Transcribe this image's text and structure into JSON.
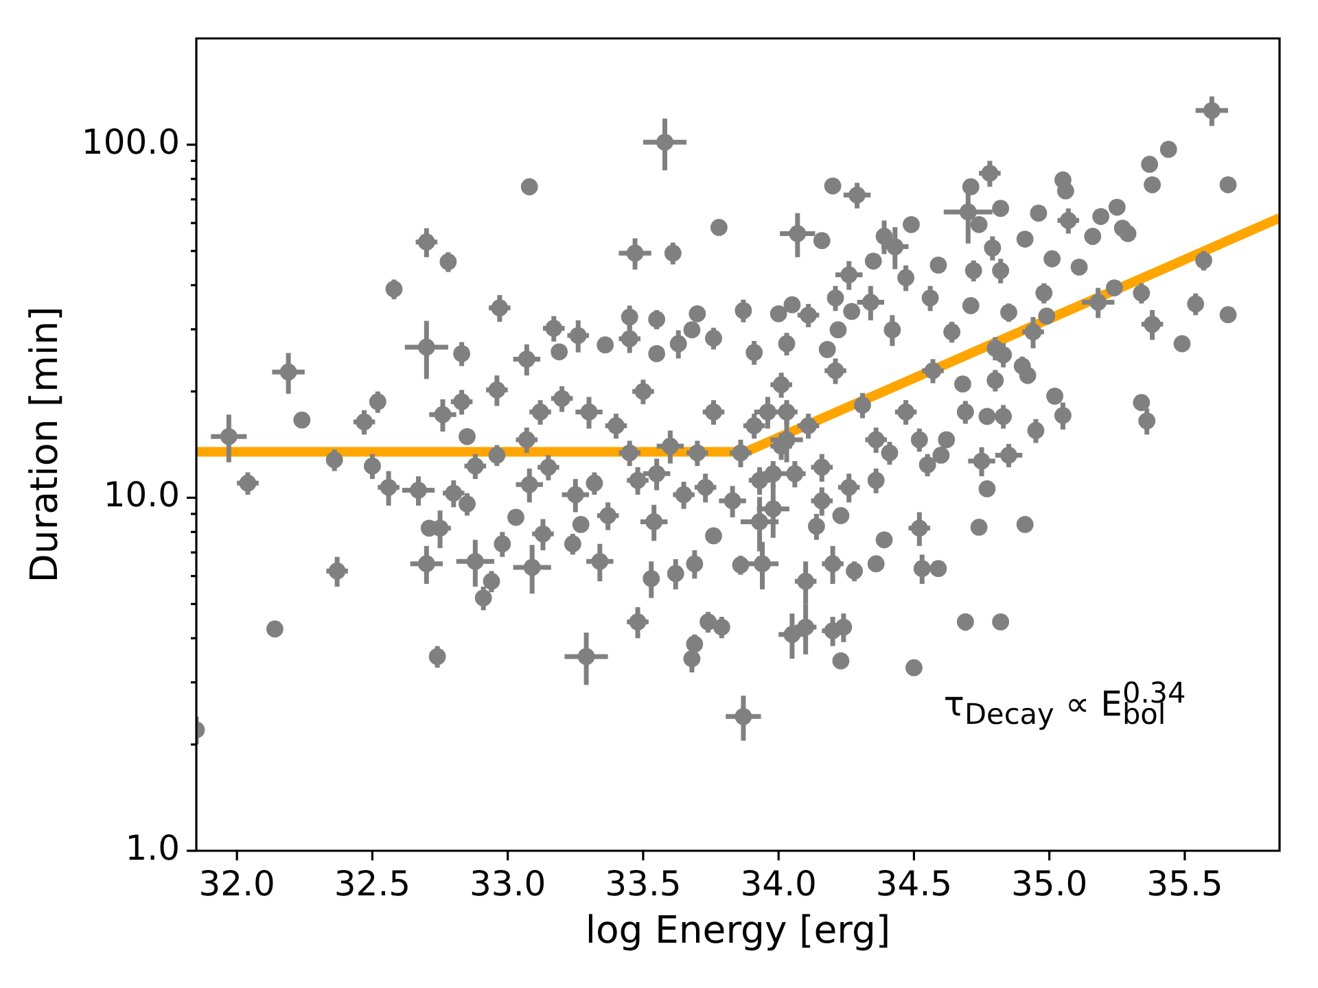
{
  "chart_data": {
    "type": "scatter",
    "xlabel": "log Energy [erg]",
    "ylabel": "Duration [min]",
    "xlim": [
      31.85,
      35.85
    ],
    "ylim": [
      1,
      200
    ],
    "log": true,
    "marker": "circle",
    "xticks": [
      {
        "value": 32,
        "label": "32.0"
      },
      32.5,
      {
        "value": 33,
        "label": "33.0"
      },
      33.5,
      {
        "value": 34,
        "label": "34.0"
      },
      34.5,
      {
        "value": 35,
        "label": "35.0"
      },
      35.5
    ],
    "yticks": [
      {
        "value": 1,
        "label": "1.0"
      },
      {
        "value": 2,
        "label": null
      },
      {
        "value": 3,
        "label": null
      },
      {
        "value": 4,
        "label": null
      },
      {
        "value": 5,
        "label": null
      },
      {
        "value": 6,
        "label": null
      },
      {
        "value": 7,
        "label": null
      },
      {
        "value": 8,
        "label": null
      },
      {
        "value": 9,
        "label": null
      },
      {
        "value": 10,
        "label": "10.0"
      },
      {
        "value": 20,
        "label": null
      },
      {
        "value": 30,
        "label": null
      },
      {
        "value": 40,
        "label": null
      },
      {
        "value": 50,
        "label": null
      },
      {
        "value": 60,
        "label": null
      },
      {
        "value": 70,
        "label": null
      },
      {
        "value": 80,
        "label": null
      },
      {
        "value": 90,
        "label": null
      },
      {
        "value": 100,
        "label": "100.0"
      }
    ],
    "annotations": [
      "τ$_{Decay}$ ∝ E$_{bol}$$^{0.34}$"
    ],
    "series": [
      {
        "type": "scatter",
        "color": "#808080",
        "x": [
          31.85,
          31.97,
          32.04,
          32.14,
          32.19,
          32.24,
          32.36,
          32.37,
          32.47,
          32.52,
          32.58,
          32.7,
          32.78,
          32.7,
          32.83,
          32.76,
          32.83,
          32.85,
          32.97,
          32.96,
          33.08,
          33.07,
          33.17,
          32.5,
          32.56,
          32.67,
          32.71,
          32.75,
          32.7,
          32.74,
          32.8,
          32.85,
          32.88,
          32.91,
          32.94,
          32.98,
          33.03,
          33.09,
          32.88,
          32.96,
          33.13,
          33.08,
          33.29,
          33.48,
          33.68,
          33.69,
          33.74,
          33.79,
          33.87,
          34.05,
          34.1,
          34.2,
          34.24,
          34.23,
          34.5,
          34.1,
          33.86,
          33.94,
          33.34,
          33.53,
          33.62,
          33.69,
          34.2,
          34.28,
          34.36,
          34.39,
          33.27,
          33.24,
          33.32,
          33.76,
          34.23,
          34.14,
          33.93,
          33.54,
          34.69,
          34.82,
          34.74,
          34.91,
          34.52,
          34.53,
          34.59,
          34.77,
          34.85,
          34.75,
          34.6,
          34.55,
          35.6,
          35.44,
          35.37,
          35.38,
          35.66,
          35.57,
          35.54,
          35.66,
          35.38,
          35.49,
          35.34,
          35.36,
          35.34,
          35.24,
          35.18,
          35.25,
          35.29,
          35.27,
          35.19,
          35.16,
          35.07,
          35.05,
          35.06,
          34.96,
          34.91,
          35.01,
          35.11,
          34.98,
          34.85,
          34.71,
          34.82,
          34.78,
          34.71,
          34.7,
          34.74,
          34.79,
          34.72,
          34.82,
          34.59,
          34.49,
          34.56,
          34.99,
          34.64,
          34.8,
          34.94,
          34.68,
          34.77,
          34.83,
          34.95,
          35.02,
          35.05,
          34.9,
          34.92,
          34.8,
          34.83,
          33.58,
          33.47,
          33.61,
          33.78,
          34.07,
          34.16,
          34.2,
          34.29,
          34.39,
          34.43,
          34.47,
          34.35,
          34.26,
          34.21,
          34.27,
          34.34,
          34.42,
          34.22,
          34.05,
          34.11,
          34.0,
          33.87,
          33.7,
          33.55,
          33.45,
          33.26,
          33.19,
          33.36,
          33.45,
          33.55,
          33.63,
          33.68,
          33.76,
          33.91,
          34.03,
          34.18,
          33.2,
          33.3,
          33.4,
          33.5,
          33.6,
          33.76,
          33.86,
          33.96,
          34.01,
          34.03,
          34.11,
          34.16,
          34.21,
          34.31,
          34.36,
          34.47,
          34.57,
          33.15,
          33.25,
          33.37,
          33.48,
          33.55,
          33.65,
          33.73,
          33.83,
          33.93,
          33.98,
          34.06,
          34.16,
          34.26,
          34.36,
          33.07,
          33.12,
          33.45,
          33.7,
          33.91,
          34.03,
          34.01,
          33.98,
          34.41,
          34.52,
          34.62,
          34.69
        ],
        "values": [
          2.2,
          14.9,
          11.0,
          4.25,
          22.7,
          16.6,
          12.8,
          6.2,
          16.4,
          18.7,
          39,
          53,
          46.6,
          26.7,
          25.6,
          17.2,
          18.7,
          14.9,
          34.5,
          20.2,
          76,
          24.7,
          30.2,
          12.3,
          10.7,
          10.5,
          8.2,
          8.2,
          6.5,
          3.55,
          10.3,
          9.6,
          6.6,
          5.2,
          5.8,
          7.4,
          8.8,
          6.35,
          12.3,
          13.2,
          7.9,
          10.9,
          3.55,
          4.45,
          3.5,
          3.85,
          4.45,
          4.3,
          2.4,
          4.1,
          4.3,
          4.2,
          4.3,
          3.45,
          3.3,
          5.8,
          6.45,
          6.5,
          6.6,
          5.9,
          6.1,
          6.5,
          6.5,
          6.2,
          6.5,
          7.6,
          8.4,
          7.4,
          11.0,
          7.8,
          8.9,
          8.3,
          8.55,
          8.55,
          4.45,
          4.45,
          8.25,
          8.4,
          8.2,
          6.3,
          6.3,
          10.6,
          13.2,
          12.7,
          13.2,
          12.4,
          125,
          97,
          88,
          77,
          77,
          47,
          35.4,
          33,
          31,
          27.3,
          18.6,
          16.5,
          38,
          39.3,
          35.8,
          66.5,
          56,
          58,
          62.6,
          55,
          61,
          79.5,
          74,
          64,
          54,
          47.5,
          45,
          38,
          33.5,
          35,
          66,
          83,
          76,
          64.5,
          59.4,
          51,
          44,
          44,
          45.6,
          59.4,
          36.8,
          32.7,
          29.5,
          26.5,
          29.5,
          21,
          17,
          17,
          15.5,
          19.4,
          17.1,
          23.6,
          22.2,
          21.5,
          25.4,
          101.6,
          49.3,
          49.3,
          58.3,
          56,
          53.5,
          76.4,
          72,
          55,
          51.4,
          42,
          46.8,
          42.8,
          36.8,
          33.7,
          35.8,
          29.9,
          29.9,
          35.2,
          32.9,
          33.2,
          33.9,
          33.2,
          32,
          32.5,
          28.8,
          25.9,
          27.1,
          28.2,
          25.6,
          27.3,
          29.9,
          28.3,
          25.8,
          27.3,
          26.3,
          19.1,
          17.5,
          16.0,
          20.0,
          14.0,
          17.5,
          13.4,
          17.5,
          20.9,
          14.6,
          16.0,
          12.2,
          22.9,
          18.3,
          14.6,
          17.5,
          22.9,
          12.2,
          10.2,
          8.9,
          11.2,
          11.7,
          10.2,
          10.7,
          9.8,
          11.2,
          9.3,
          11.7,
          9.8,
          10.7,
          11.2,
          14.6,
          17.5,
          13.4,
          13.4,
          16.0,
          17.5,
          14.0,
          11.7,
          13.4,
          14.6,
          14.6,
          17.5
        ],
        "xerrors": [
          null,
          0.066,
          0.04,
          0.02,
          0.06,
          null,
          0.03,
          0.04,
          0.04,
          0.03,
          0.02,
          0.04,
          0.02,
          0.08,
          0.02,
          0.05,
          0.04,
          null,
          0.04,
          0.04,
          0.02,
          0.05,
          0.04,
          0.03,
          0.04,
          0.06,
          null,
          0.04,
          0.06,
          0.02,
          0.04,
          0.03,
          0.07,
          0.02,
          0.02,
          0.03,
          null,
          0.07,
          0.04,
          0.03,
          0.04,
          0.05,
          0.08,
          0.04,
          0.03,
          0.02,
          0.02,
          0.02,
          0.065,
          0.05,
          0.04,
          0.04,
          0.02,
          null,
          null,
          0.04,
          0.02,
          0.06,
          0.05,
          0.03,
          0.03,
          0.03,
          0.04,
          0.02,
          null,
          null,
          null,
          0.03,
          0.03,
          null,
          null,
          0.03,
          0.07,
          0.05,
          0.02,
          null,
          0.02,
          0.02,
          0.04,
          0.03,
          null,
          null,
          0.05,
          0.05,
          null,
          0.03,
          0.06,
          null,
          0.015,
          null,
          null,
          0.02,
          0.02,
          null,
          0.04,
          null,
          null,
          0.03,
          0.02,
          null,
          0.06,
          null,
          null,
          null,
          null,
          0.02,
          0.04,
          null,
          null,
          0.02,
          null,
          null,
          null,
          0.03,
          0.02,
          null,
          null,
          0.04,
          null,
          0.09,
          null,
          0.03,
          0.02,
          0.03,
          null,
          null,
          0.03,
          null,
          0.03,
          0.03,
          0.04,
          null,
          null,
          0.02,
          0.02,
          null,
          0.03,
          0.02,
          null,
          0.02,
          0.03,
          0.08,
          0.06,
          0.03,
          0.015,
          0.065,
          null,
          null,
          0.05,
          0.03,
          0.05,
          0.02,
          null,
          0.05,
          0.03,
          null,
          0.05,
          0.03,
          null,
          null,
          0.04,
          null,
          0.03,
          null,
          0.02,
          0.03,
          0.04,
          null,
          null,
          0.04,
          null,
          0.03,
          null,
          0.03,
          0.02,
          0.03,
          null,
          0.04,
          0.05,
          0.04,
          0.04,
          0.05,
          0.04,
          0.04,
          0.05,
          0.04,
          0.06,
          0.04,
          0.04,
          0.04,
          0.03,
          0.04,
          0.04,
          0.04,
          0.04,
          0.05,
          0.04,
          0.04,
          0.05,
          0.04,
          0.04,
          0.05,
          0.04,
          0.06,
          0.04,
          0.04,
          0.04,
          0.03,
          0.04,
          0.04,
          0.04,
          0.04,
          0.04,
          0.04,
          0.04,
          0.04,
          0.03,
          0.03,
          null,
          0.03
        ],
        "errors": [
          0.2,
          2.3,
          0.8,
          0.2,
          3.0,
          null,
          0.9,
          0.6,
          1.3,
          1.3,
          2.5,
          5,
          3,
          5,
          2,
          1.8,
          1.5,
          null,
          3,
          2,
          4,
          2.5,
          2.5,
          1.0,
          1.2,
          1.0,
          null,
          1.0,
          0.8,
          0.25,
          0.9,
          0.7,
          1.0,
          0.4,
          0.4,
          0.6,
          null,
          1.0,
          1.0,
          0.9,
          0.8,
          1.2,
          0.6,
          0.45,
          0.3,
          0.25,
          0.3,
          0.3,
          0.35,
          0.6,
          0.7,
          0.4,
          0.4,
          null,
          null,
          0.8,
          0.4,
          1.0,
          0.8,
          0.7,
          0.6,
          0.6,
          0.8,
          0.4,
          null,
          null,
          null,
          0.5,
          0.8,
          null,
          null,
          0.7,
          1.5,
          1.0,
          0.25,
          null,
          0.4,
          0.4,
          0.9,
          0.6,
          null,
          null,
          1.0,
          1.2,
          null,
          0.9,
          12,
          null,
          4,
          null,
          null,
          3,
          2.5,
          null,
          3,
          null,
          null,
          1.4,
          2.5,
          null,
          3.5,
          null,
          null,
          null,
          null,
          3,
          5,
          null,
          null,
          3,
          null,
          null,
          null,
          2.5,
          2,
          null,
          null,
          7,
          null,
          12,
          null,
          4,
          3,
          3.5,
          null,
          null,
          3,
          null,
          2,
          2,
          3,
          null,
          null,
          1.3,
          1.2,
          null,
          1.5,
          1.5,
          null,
          1.5,
          2,
          17,
          5,
          3.5,
          3,
          8,
          null,
          null,
          6,
          6,
          7,
          3.5,
          null,
          4,
          3,
          null,
          4,
          3,
          null,
          null,
          2.5,
          null,
          2.5,
          null,
          2,
          2.5,
          3,
          null,
          null,
          2.5,
          null,
          2.5,
          null,
          2,
          2,
          2,
          null,
          1.6,
          1.8,
          1.3,
          1.6,
          1.5,
          1.4,
          1.2,
          1.8,
          1.7,
          2,
          1.3,
          1.1,
          1.9,
          1.5,
          1.2,
          1.4,
          1.8,
          1.0,
          1.1,
          0.8,
          1.0,
          1.2,
          0.9,
          1.0,
          1.0,
          1.0,
          1.6,
          1.0,
          0.9,
          1.0,
          0.9,
          1.2,
          1.4,
          1.1,
          1.1,
          1.3,
          1.4,
          1.2,
          1.0,
          1.0,
          1.1,
          null,
          1.3
        ]
      },
      {
        "type": "line",
        "color": "#ffa500",
        "marker": "none",
        "x": [
          31.85,
          33.88,
          35.85
        ],
        "values": [
          13.5,
          13.5,
          62
        ]
      }
    ]
  }
}
